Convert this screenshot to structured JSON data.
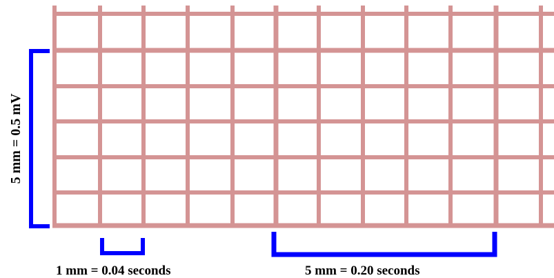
{
  "grid": {
    "small_square_mm": 1,
    "large_square_mm": 5,
    "grid_color": "#d49494",
    "background_color": "#ffffff"
  },
  "annotations": {
    "bracket_color": "#0000ff",
    "voltage_label": "5 mm = 0.5 mV",
    "small_time_label": "1 mm = 0.04 seconds",
    "large_time_label": "5  mm = 0.20 seconds"
  }
}
